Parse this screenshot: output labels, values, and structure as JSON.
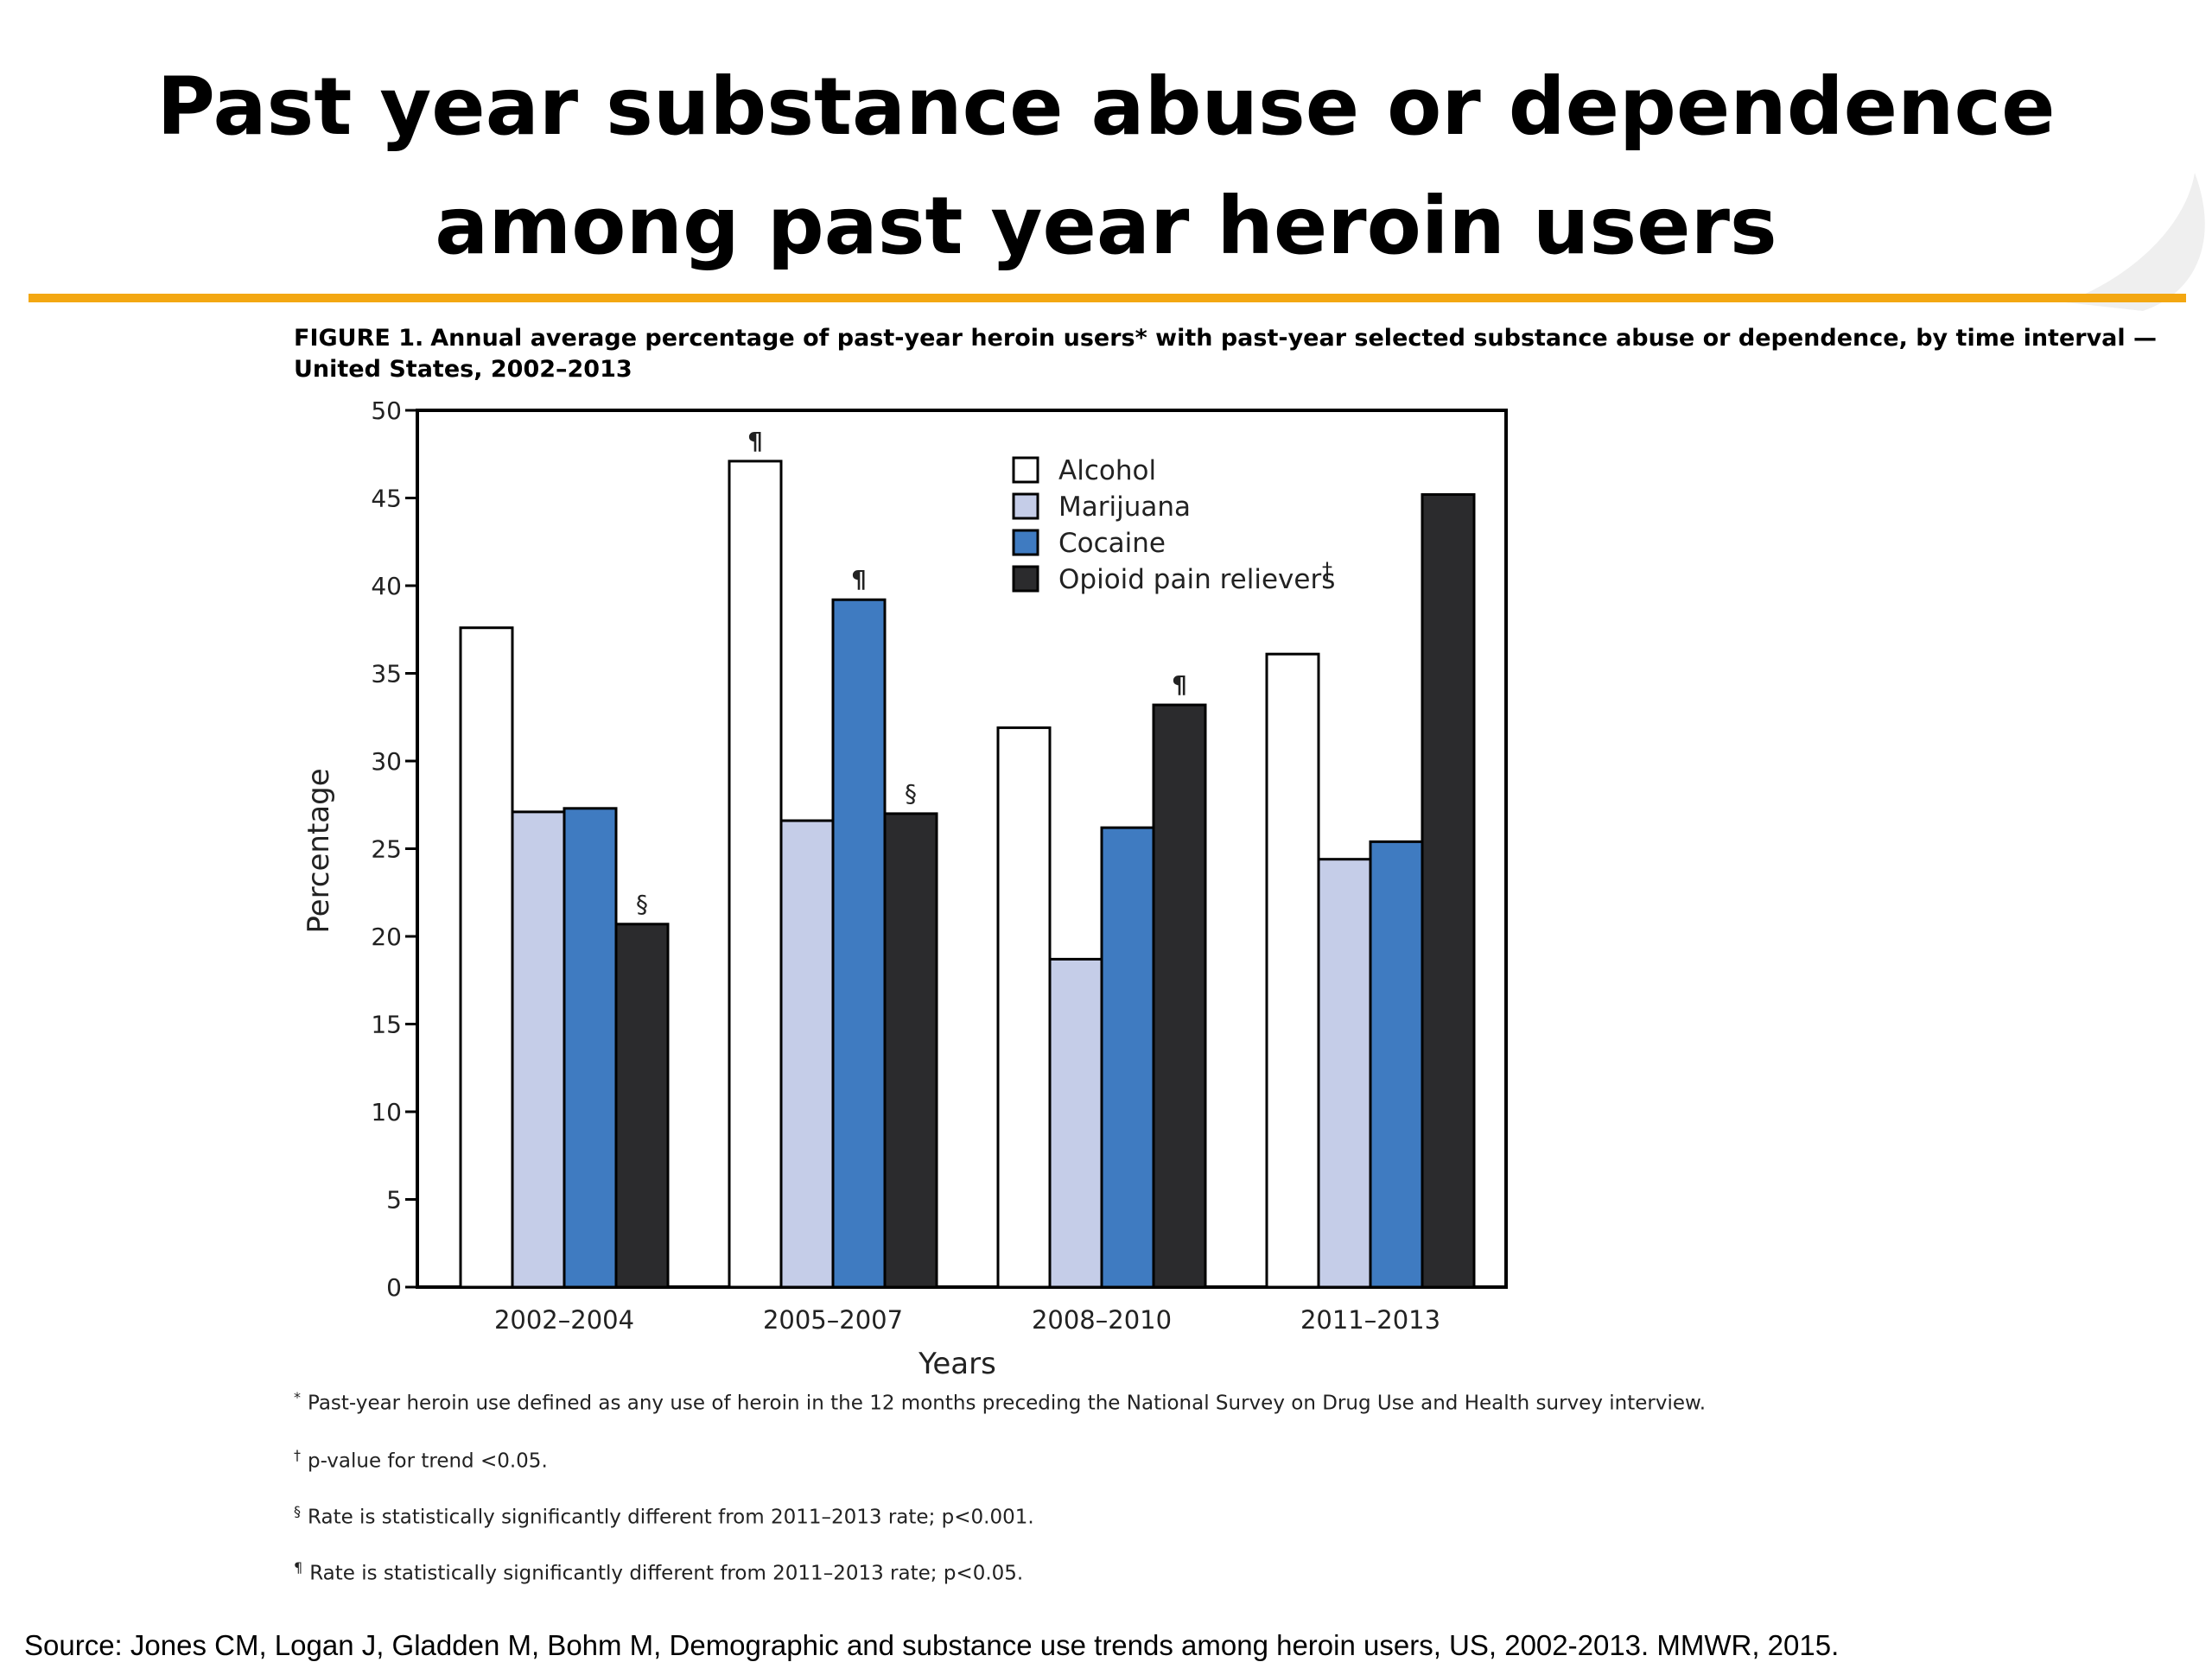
{
  "slide": {
    "title_line1": "Past year substance abuse or dependence",
    "title_line2": "among past year heroin users",
    "accent_color": "#f3a712"
  },
  "figure": {
    "caption_label": "FIGURE 1.",
    "caption_text": "Annual average percentage of past-year heroin users* with past-year selected substance abuse or dependence, by time interval — United States, 2002–2013"
  },
  "chart_data": {
    "type": "bar",
    "xlabel": "Years",
    "ylabel": "Percentage",
    "ylim": [
      0,
      50
    ],
    "yticks": [
      0,
      5,
      10,
      15,
      20,
      25,
      30,
      35,
      40,
      45,
      50
    ],
    "categories": [
      "2002–2004",
      "2005–2007",
      "2008–2010",
      "2011–2013"
    ],
    "series": [
      {
        "name": "Alcohol",
        "color": "#ffffff",
        "values": [
          37.6,
          47.1,
          31.9,
          36.1
        ],
        "marks": [
          "",
          "¶",
          "",
          ""
        ]
      },
      {
        "name": "Marijuana",
        "color": "#c5cde8",
        "values": [
          27.1,
          26.6,
          18.7,
          24.4
        ],
        "marks": [
          "",
          "",
          "",
          ""
        ]
      },
      {
        "name": "Cocaine",
        "color": "#3f7bc1",
        "values": [
          27.3,
          39.2,
          26.2,
          25.4
        ],
        "marks": [
          "",
          "¶",
          "",
          ""
        ]
      },
      {
        "name": "Opioid pain relievers",
        "legend_mark": "†",
        "color": "#2b2b2d",
        "values": [
          20.7,
          27.0,
          33.2,
          45.2
        ],
        "marks": [
          "§",
          "§",
          "¶",
          ""
        ]
      }
    ],
    "legend_position": "top-right",
    "grid": false
  },
  "footnotes": [
    {
      "mark": "*",
      "text": "Past-year heroin use defined as any use of heroin in the 12 months preceding the National Survey on Drug Use and Health survey interview."
    },
    {
      "mark": "†",
      "text": "p-value for trend <0.05."
    },
    {
      "mark": "§",
      "text": "Rate is statistically significantly different from 2011–2013 rate; p<0.001."
    },
    {
      "mark": "¶",
      "text": "Rate is statistically significantly different from 2011–2013 rate; p<0.05."
    }
  ],
  "source": "Source: Jones CM, Logan J, Gladden M, Bohm M, Demographic and substance use trends among heroin users, US, 2002-2013. MMWR, 2015."
}
